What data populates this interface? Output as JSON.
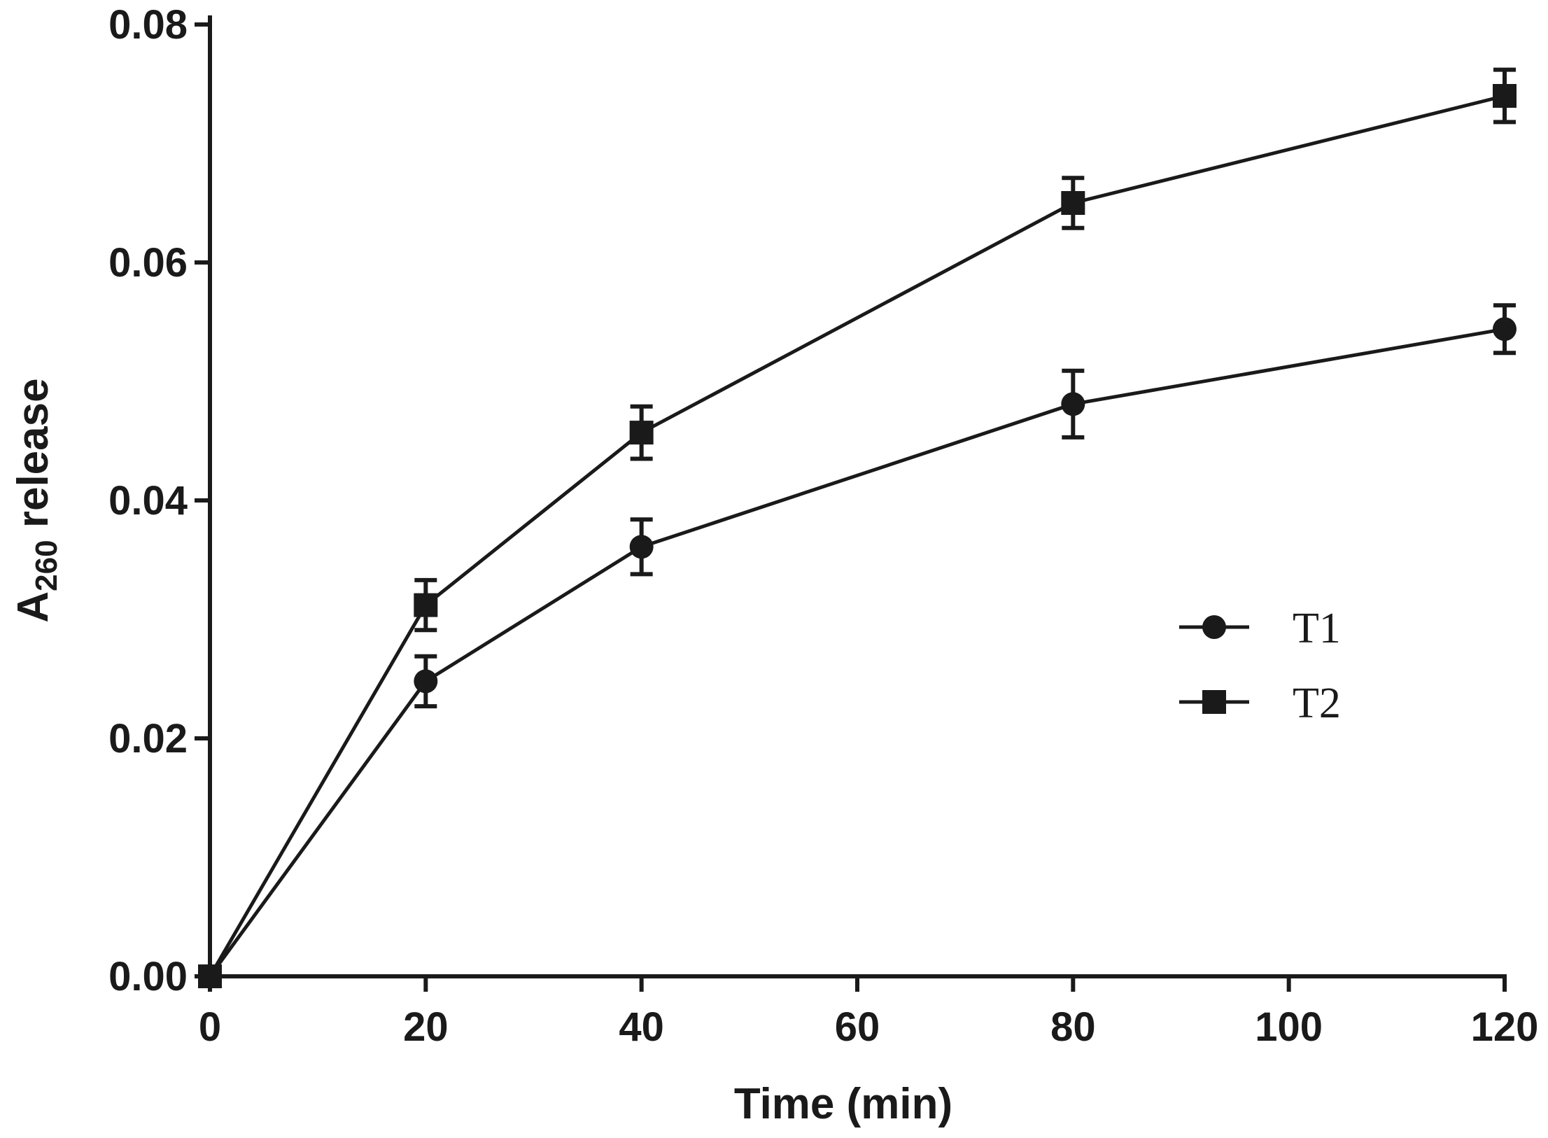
{
  "chart_data": {
    "type": "line",
    "title": "",
    "xlabel": "Time (min)",
    "ylabel": {
      "main": "A",
      "subscript": "260",
      "suffix": " release"
    },
    "xlim": [
      0,
      120
    ],
    "ylim": [
      0,
      0.08
    ],
    "x_ticks": [
      0,
      20,
      40,
      60,
      80,
      100,
      120
    ],
    "x_tick_labels": [
      "0",
      "20",
      "40",
      "60",
      "80",
      "100",
      "120"
    ],
    "y_ticks": [
      0,
      0.02,
      0.04,
      0.06,
      0.08
    ],
    "y_tick_labels": [
      "0.00",
      "0.02",
      "0.04",
      "0.06",
      "0.08"
    ],
    "grid": false,
    "legend_position": "right",
    "x": [
      0,
      20,
      40,
      80,
      120
    ],
    "series": [
      {
        "name": "T1",
        "marker": "circle",
        "values": [
          0,
          0.0248,
          0.0361,
          0.0481,
          0.0544
        ],
        "errors": [
          0,
          0.0021,
          0.0023,
          0.0028,
          0.002
        ]
      },
      {
        "name": "T2",
        "marker": "square",
        "values": [
          0,
          0.0312,
          0.0457,
          0.065,
          0.074
        ],
        "errors": [
          0,
          0.0021,
          0.0022,
          0.0021,
          0.0022
        ]
      }
    ],
    "colors": {
      "line": "#1a1a1a",
      "background": "#ffffff"
    }
  }
}
